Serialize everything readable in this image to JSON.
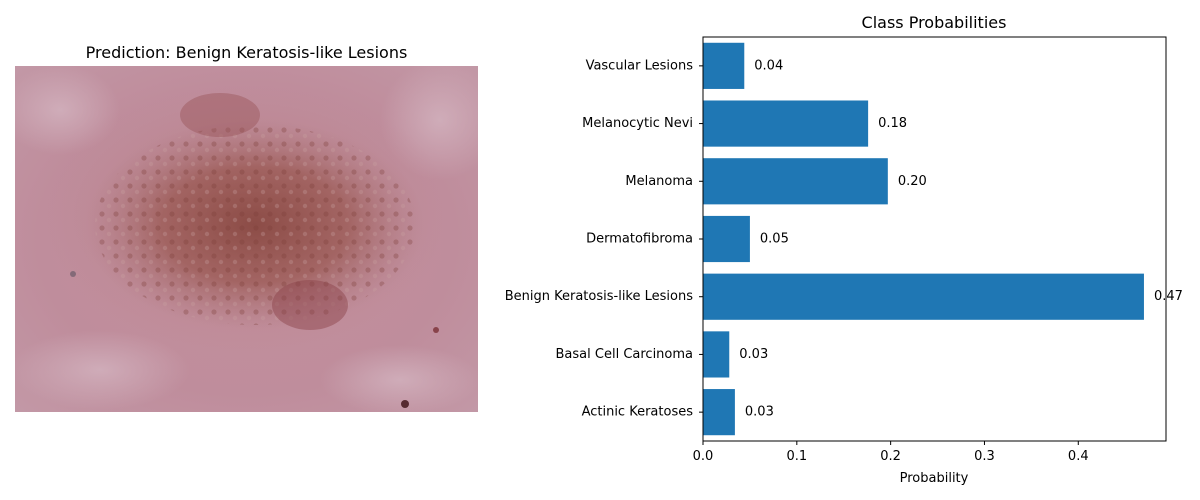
{
  "left_panel": {
    "title": "Prediction: Benign Keratosis-like Lesions",
    "image_description": "dermoscopic skin lesion image"
  },
  "chart_data": {
    "type": "bar",
    "orientation": "horizontal",
    "title": "Class Probabilities",
    "xlabel": "Probability",
    "ylabel": "",
    "categories": [
      "Actinic Keratoses",
      "Basal Cell Carcinoma",
      "Benign Keratosis-like Lesions",
      "Dermatofibroma",
      "Melanoma",
      "Melanocytic Nevi",
      "Vascular Lesions"
    ],
    "values": [
      0.034,
      0.028,
      0.47,
      0.05,
      0.197,
      0.176,
      0.044
    ],
    "value_labels": [
      "0.03",
      "0.03",
      "0.47",
      "0.05",
      "0.20",
      "0.18",
      "0.04"
    ],
    "xticks": [
      0.0,
      0.1,
      0.2,
      0.3,
      0.4
    ],
    "xtick_labels": [
      "0.0",
      "0.1",
      "0.2",
      "0.3",
      "0.4"
    ],
    "xlim": [
      0,
      0.4935
    ],
    "bar_color": "#1f77b4",
    "grid": false,
    "legend": "none"
  }
}
